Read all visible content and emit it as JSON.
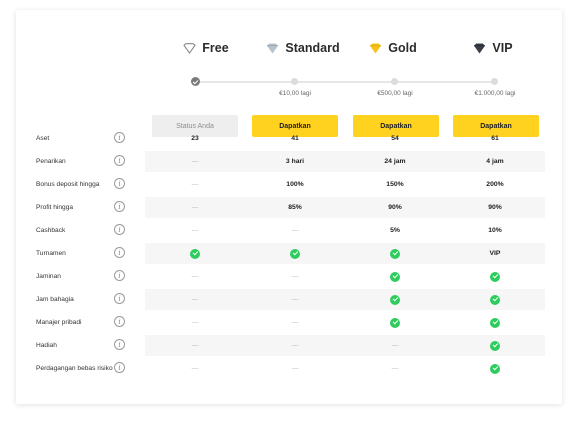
{
  "tiers": [
    {
      "name": "Free",
      "icon": "heart-outline-icon"
    },
    {
      "name": "Standard",
      "icon": "diamond-silver-icon"
    },
    {
      "name": "Gold",
      "icon": "diamond-gold-icon"
    },
    {
      "name": "VIP",
      "icon": "diamond-dark-icon"
    }
  ],
  "progress": {
    "labels": [
      "",
      "€10,00 lagi",
      "€500,00 lagi",
      "€1.000,00 lagi"
    ]
  },
  "buttons": [
    "Status Anda",
    "Dapatkan",
    "Dapatkan",
    "Dapatkan"
  ],
  "info_symbol": "i",
  "rows": [
    {
      "label": "Aset",
      "values": [
        "23",
        "41",
        "54",
        "61"
      ]
    },
    {
      "label": "Penarikan",
      "values": [
        "—",
        "3 hari",
        "24 jam",
        "4 jam"
      ]
    },
    {
      "label": "Bonus deposit hingga",
      "values": [
        "—",
        "100%",
        "150%",
        "200%"
      ]
    },
    {
      "label": "Profit hingga",
      "values": [
        "—",
        "85%",
        "90%",
        "90%"
      ]
    },
    {
      "label": "Cashback",
      "values": [
        "—",
        "—",
        "5%",
        "10%"
      ]
    },
    {
      "label": "Turnamen",
      "values": [
        "check",
        "check",
        "check",
        "VIP"
      ]
    },
    {
      "label": "Jaminan",
      "values": [
        "—",
        "—",
        "check",
        "check"
      ]
    },
    {
      "label": "Jam bahagia",
      "values": [
        "—",
        "—",
        "check",
        "check"
      ]
    },
    {
      "label": "Manajer pribadi",
      "values": [
        "—",
        "—",
        "check",
        "check"
      ]
    },
    {
      "label": "Hadiah",
      "values": [
        "—",
        "—",
        "—",
        "check"
      ]
    },
    {
      "label": "Perdagangan bebas risiko",
      "values": [
        "—",
        "—",
        "—",
        "check"
      ]
    }
  ],
  "colors": {
    "accent_yellow": "#ffd21f",
    "check_green": "#2ecc5e",
    "stripe": "#f6f6f6"
  }
}
